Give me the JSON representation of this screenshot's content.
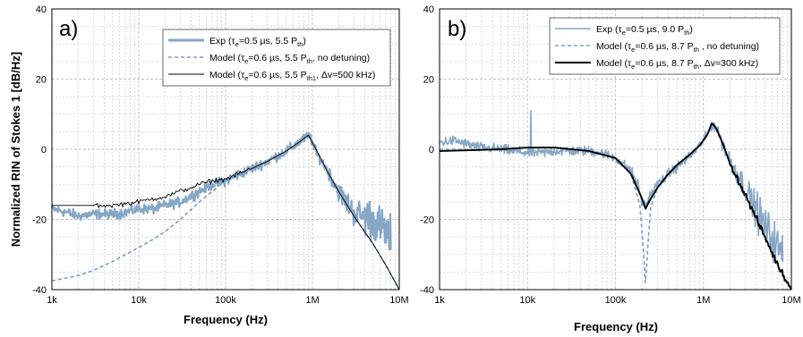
{
  "chart_data": [
    {
      "type": "line",
      "panel_label": "a)",
      "xlabel": "Frequency (Hz)",
      "ylabel": "Normalized RIN of Stokes 1 [dB/Hz]",
      "xscale": "log",
      "xlim": [
        1000,
        10000000
      ],
      "ylim": [
        -40,
        40
      ],
      "x_tick_labels": [
        "1k",
        "10k",
        "100k",
        "1M",
        "10M"
      ],
      "y_tick_labels": [
        "-40",
        "-20",
        "0",
        "20",
        "40"
      ],
      "grid": true,
      "legend_position": "top-right",
      "series": [
        {
          "legend": {
            "main": "Exp (τ",
            "sub1": "e",
            "mid": "=0.5 µs, 5.5 P",
            "sub2": "th",
            "tail": ")"
          },
          "style": "thick-noisy",
          "color": "#86a7c6",
          "x": [
            1000,
            1500,
            2000,
            3000,
            5000,
            7000,
            10000,
            15000,
            20000,
            30000,
            50000,
            70000,
            100000,
            200000,
            300000,
            500000,
            700000,
            850000,
            950000,
            1100000,
            1500000,
            2000000,
            3000000,
            5000000,
            8000000
          ],
          "y": [
            -17,
            -18,
            -19,
            -18.5,
            -18.5,
            -18,
            -17,
            -17,
            -16,
            -15,
            -12,
            -10,
            -9,
            -5.5,
            -3.5,
            -0.5,
            2,
            3.5,
            3.5,
            -1,
            -6,
            -12,
            -18,
            -20,
            -25
          ]
        },
        {
          "legend": {
            "main": "Model (τ",
            "sub1": "e",
            "mid": "=0.6 µs, 5.5 P",
            "sub2": "th",
            "tail": ", no detuning)"
          },
          "style": "dashed",
          "color": "#7d9dbf",
          "x": [
            1000,
            2000,
            3000,
            5000,
            7000,
            10000,
            15000,
            20000,
            30000,
            50000,
            70000,
            100000,
            200000,
            300000,
            500000,
            700000,
            900000,
            1100000,
            1500000,
            2000000,
            3000000,
            5000000,
            7000000,
            10000000
          ],
          "y": [
            -37.5,
            -36,
            -34.5,
            -32,
            -30,
            -28,
            -25.5,
            -23.5,
            -20,
            -15,
            -12,
            -9,
            -5.5,
            -3.5,
            -0.5,
            2,
            4,
            0,
            -6.5,
            -12,
            -19,
            -27,
            -33,
            -40
          ]
        },
        {
          "legend": {
            "main": "Model (τ",
            "sub1": "e",
            "mid": "=0.6 µs, 5.5 P",
            "sub2": "th1",
            "tail": ", Δv=500 kHz)"
          },
          "style": "thin",
          "color": "#000000",
          "x": [
            1000,
            2000,
            3000,
            5000,
            7000,
            10000,
            15000,
            20000,
            30000,
            50000,
            70000,
            100000,
            200000,
            300000,
            500000,
            700000,
            900000,
            1100000,
            1500000,
            2000000,
            3000000,
            5000000,
            7000000,
            10000000
          ],
          "y": [
            -16,
            -16,
            -16,
            -16,
            -15.5,
            -15,
            -14,
            -13.5,
            -12,
            -10,
            -9,
            -8.5,
            -5.5,
            -3.5,
            -0.5,
            2,
            4,
            0,
            -6.5,
            -12,
            -19,
            -27,
            -33,
            -40
          ]
        }
      ]
    },
    {
      "type": "line",
      "panel_label": "b)",
      "xlabel": "Frequency (Hz)",
      "xscale": "log",
      "xlim": [
        1000,
        10000000
      ],
      "ylim": [
        -40,
        40
      ],
      "x_tick_labels": [
        "1k",
        "10k",
        "100k",
        "1M",
        "10M"
      ],
      "y_tick_labels": [
        "-40",
        "-20",
        "0",
        "20",
        "40"
      ],
      "grid": true,
      "legend_position": "top-right",
      "series": [
        {
          "legend": {
            "main": "Exp (τ",
            "sub1": "e",
            "mid": "=0.5 µs, 9.0 P",
            "sub2": "th",
            "tail": ")"
          },
          "style": "noisy",
          "color": "#86a7c6",
          "x": [
            1000,
            1500,
            2000,
            3000,
            5000,
            7000,
            10000,
            15000,
            20000,
            30000,
            50000,
            70000,
            100000,
            150000,
            180000,
            200000,
            220000,
            250000,
            300000,
            400000,
            500000,
            700000,
            900000,
            1100000,
            1250000,
            1400000,
            1700000,
            2000000,
            3000000,
            5000000,
            8000000
          ],
          "y": [
            2,
            2.5,
            1.5,
            0.5,
            0,
            -0.5,
            -1,
            -1,
            -0.5,
            -0.5,
            -0.5,
            -1,
            -2.5,
            -6,
            -10,
            -15,
            -16,
            -13,
            -10,
            -7,
            -5,
            -2,
            1,
            4,
            7,
            6,
            1,
            -3,
            -11,
            -22,
            -30
          ]
        },
        {
          "legend": {
            "main": "Model (τ",
            "sub1": "e",
            "mid": "=0.6 µs, 8.7 P",
            "sub2": "th",
            "tail": " , no detuning)"
          },
          "style": "dashed",
          "color": "#7d9dbf",
          "x": [
            1000,
            2000,
            5000,
            10000,
            20000,
            50000,
            100000,
            150000,
            190000,
            210000,
            220000,
            230000,
            250000,
            300000,
            400000,
            500000,
            700000,
            900000,
            1100000,
            1250000,
            1400000,
            1700000,
            2000000,
            3000000,
            5000000,
            7000000,
            10000000
          ],
          "y": [
            0,
            0,
            0,
            0.5,
            0.5,
            0,
            -2.5,
            -7,
            -16,
            -30,
            -40,
            -30,
            -17,
            -11,
            -7,
            -4.5,
            -1.5,
            1,
            4,
            7.5,
            6,
            1,
            -4,
            -13,
            -25,
            -33,
            -40
          ]
        },
        {
          "legend": {
            "main": "Model (τ",
            "sub1": "e",
            "mid": "=0.6 µs, 8.7 P",
            "sub2": "th",
            "tail": ", Δv=300 kHz)"
          },
          "style": "thick",
          "color": "#000000",
          "x": [
            1000,
            2000,
            5000,
            10000,
            20000,
            50000,
            100000,
            150000,
            200000,
            220000,
            240000,
            300000,
            400000,
            500000,
            700000,
            900000,
            1100000,
            1250000,
            1400000,
            1700000,
            2000000,
            3000000,
            5000000,
            7000000,
            10000000
          ],
          "y": [
            -0.5,
            -0.3,
            0,
            0.5,
            0.5,
            -0.5,
            -2.5,
            -7,
            -14,
            -17,
            -15,
            -11,
            -7,
            -4.5,
            -1.5,
            1,
            4,
            7.5,
            6,
            1,
            -4,
            -13,
            -25,
            -33,
            -40
          ]
        }
      ]
    }
  ]
}
